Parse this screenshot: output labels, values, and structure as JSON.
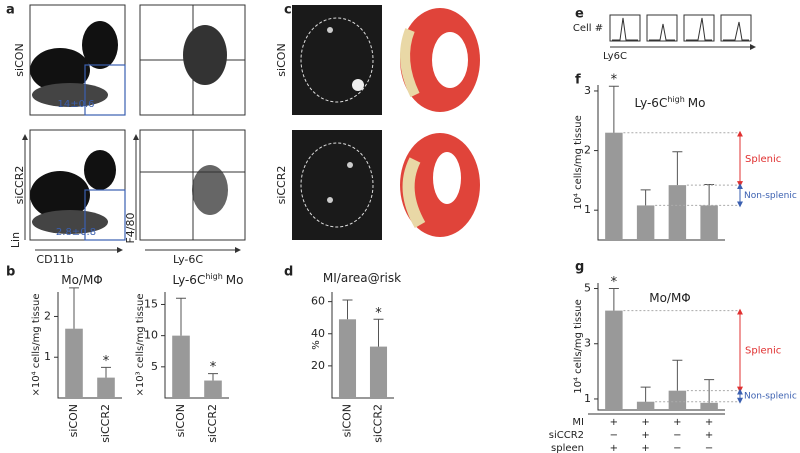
{
  "panel_letters": [
    "a",
    "b",
    "c",
    "d",
    "e",
    "f",
    "g"
  ],
  "flow": {
    "rows": [
      "siCON",
      "siCCR2"
    ],
    "y_axis_left": "Lin",
    "x_axis_left": "CD11b",
    "y_axis_right": "F4/80",
    "x_axis_right": "Ly-6C",
    "gates": [
      "14±0.6",
      "2.8±0.8"
    ]
  },
  "imaging": {
    "rows": [
      "siCON",
      "siCCR2"
    ]
  },
  "histograms": {
    "y_axis": "Cell #",
    "x_axis": "Ly6C"
  },
  "chart_data": [
    {
      "type": "bar",
      "title": "Mo/MΦ",
      "y_label": "×10⁴ cells/mg tissue",
      "categories": [
        "siCON",
        "siCCR2"
      ],
      "values": [
        1.7,
        0.5
      ],
      "errors": [
        1.0,
        0.25
      ],
      "significance": [
        null,
        "*"
      ],
      "color": "#999999",
      "ylim": [
        0,
        2.6
      ],
      "yticks": [
        1,
        2
      ]
    },
    {
      "type": "bar",
      "title": "Ly-6C",
      "title_sup": "high",
      "title_end": "Mo",
      "y_label": "×10³ cells/mg tissue",
      "categories": [
        "siCON",
        "siCCR2"
      ],
      "values": [
        10,
        2.8
      ],
      "errors": [
        6,
        1.1
      ],
      "significance": [
        null,
        "*"
      ],
      "color": "#999999",
      "ylim": [
        0,
        17
      ],
      "yticks": [
        5,
        10,
        15
      ]
    },
    {
      "type": "bar",
      "title": "MI/area@risk",
      "y_label": "%",
      "categories": [
        "siCON",
        "siCCR2"
      ],
      "values": [
        49,
        32
      ],
      "errors": [
        12,
        17
      ],
      "significance": [
        null,
        "*"
      ],
      "color": "#999999",
      "ylim": [
        0,
        66
      ],
      "yticks": [
        20,
        40,
        60
      ]
    },
    {
      "type": "bar",
      "title": "Ly-6C",
      "title_sup": "high",
      "title_end": "Mo",
      "y_label": "10⁴ cells/mg tissue",
      "categories": [
        null,
        null,
        null,
        null
      ],
      "values": [
        2.3,
        1.08,
        1.42,
        1.08
      ],
      "errors": [
        0.78,
        0.26,
        0.56,
        0.35
      ],
      "significance": [
        "*",
        null,
        null,
        null
      ],
      "color": "#999999",
      "ylim": [
        0.5,
        3.1
      ],
      "yticks": [
        1,
        2,
        3
      ],
      "annotations": {
        "upper": "Splenic",
        "lower": "Non-splenic"
      }
    },
    {
      "type": "bar",
      "title": "Mo/MΦ",
      "y_label": "10⁴ cells/mg tissue",
      "categories": [
        null,
        null,
        null,
        null
      ],
      "values": [
        4.2,
        0.9,
        1.3,
        0.86
      ],
      "errors": [
        0.8,
        0.53,
        1.1,
        0.84
      ],
      "significance": [
        "*",
        null,
        null,
        null
      ],
      "color": "#999999",
      "ylim": [
        0.6,
        5.2
      ],
      "yticks": [
        1,
        3,
        5
      ],
      "annotations": {
        "upper": "Splenic",
        "lower": "Non-splenic"
      },
      "conditions": [
        {
          "label": "MI",
          "marks": [
            "+",
            "+",
            "+",
            "+"
          ]
        },
        {
          "label": "siCCR2",
          "marks": [
            "−",
            "+",
            "−",
            "+"
          ]
        },
        {
          "label": "spleen",
          "marks": [
            "+",
            "+",
            "−",
            "−"
          ]
        }
      ]
    }
  ]
}
